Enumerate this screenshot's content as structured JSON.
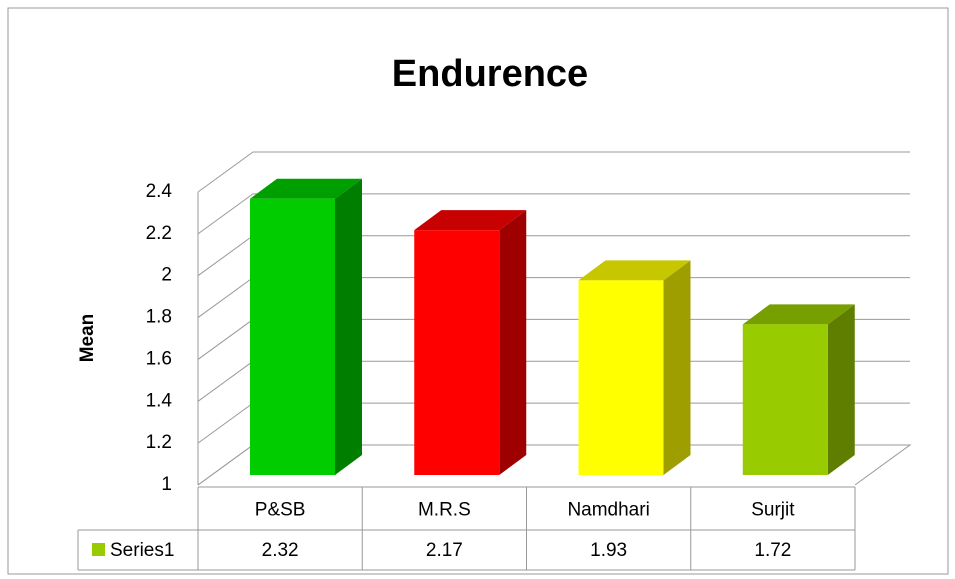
{
  "chart_data": {
    "type": "bar3d",
    "title": "Endurence",
    "y_label": "Mean",
    "categories": [
      "P&SB",
      "M.R.S",
      "Namdhari",
      "Surjit"
    ],
    "series": [
      {
        "name": "Series1",
        "color": "#99cc00",
        "values": [
          2.32,
          2.17,
          1.93,
          1.72
        ],
        "point_colors": [
          "#00cc00",
          "#ff0000",
          "#ffff00",
          "#99cc00"
        ]
      }
    ],
    "ylim": [
      1,
      2.4
    ],
    "yticks": [
      1,
      1.2,
      1.4,
      1.6,
      1.8,
      2,
      2.2,
      2.4
    ],
    "grid": true,
    "data_table": true
  }
}
